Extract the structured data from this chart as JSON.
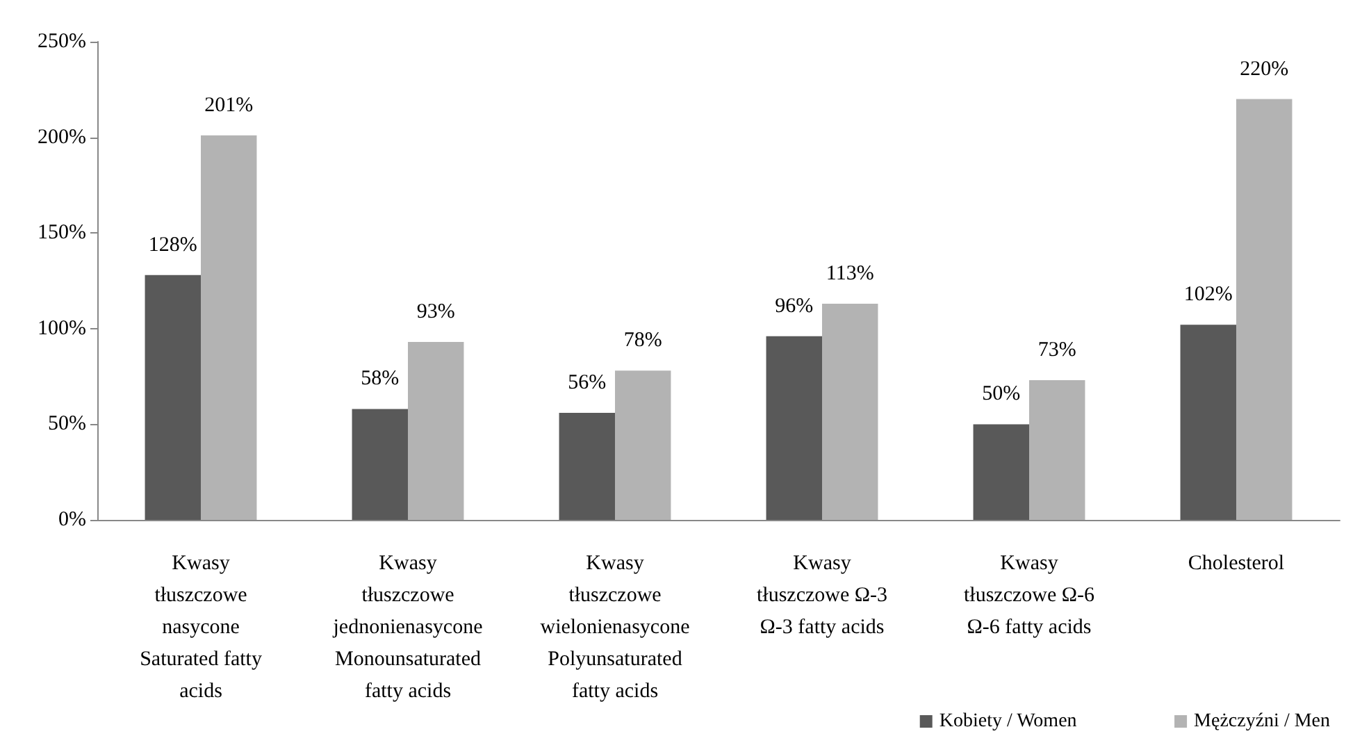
{
  "chart_data": {
    "type": "bar",
    "categories": [
      "Kwasy\ntłuszczowe\nnasycone\nSaturated fatty\nacids",
      "Kwasy\ntłuszczowe\njednonienasycone\nMonounsaturated\nfatty acids",
      "Kwasy\ntłuszczowe\nwielonienasycone\nPolyunsaturated\nfatty acids",
      "Kwasy\ntłuszczowe Ω-3\nΩ-3 fatty acids",
      "Kwasy\ntłuszczowe Ω-6\nΩ-6 fatty acids",
      "Cholesterol"
    ],
    "series": [
      {
        "name": "Kobiety / Women",
        "color": "#595959",
        "values": [
          128,
          58,
          56,
          96,
          50,
          102
        ],
        "value_labels": [
          "128%",
          "58%",
          "56%",
          "96%",
          "50%",
          "102%"
        ]
      },
      {
        "name": "Mężczyźni / Men",
        "color": "#b3b3b3",
        "values": [
          201,
          93,
          78,
          113,
          73,
          220
        ],
        "value_labels": [
          "201%",
          "93%",
          "78%",
          "113%",
          "73%",
          "220%"
        ]
      }
    ],
    "ylim": [
      0,
      250
    ],
    "yticks": [
      {
        "value": 0,
        "label": "0%"
      },
      {
        "value": 50,
        "label": "50%"
      },
      {
        "value": 100,
        "label": "100%"
      },
      {
        "value": 150,
        "label": "150%"
      },
      {
        "value": 200,
        "label": "200%"
      },
      {
        "value": 250,
        "label": "250%"
      }
    ],
    "grid": false,
    "legend": "bottom right"
  }
}
